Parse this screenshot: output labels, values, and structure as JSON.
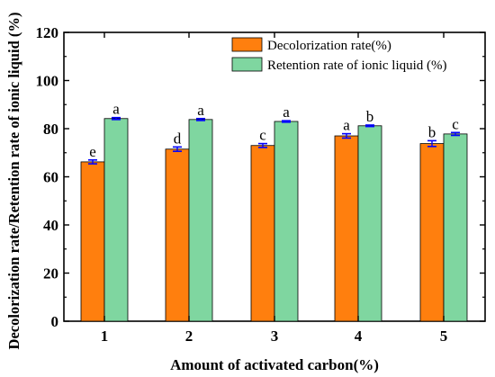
{
  "chart_data": {
    "type": "bar",
    "xlabel": "Amount of activated carbon(%)",
    "ylabel": "Decolorization rate/Retention rate of ionic liquid (%)",
    "ylim": [
      0,
      120
    ],
    "yticks": [
      0,
      20,
      40,
      60,
      80,
      100,
      120
    ],
    "categories": [
      "1",
      "2",
      "3",
      "4",
      "5"
    ],
    "series": [
      {
        "name": "Decolorization rate(%)",
        "color": "#FF7F0E",
        "values": [
          66.2,
          71.5,
          73.0,
          77.0,
          73.8
        ],
        "errors": [
          0.8,
          0.9,
          0.8,
          0.9,
          1.2
        ],
        "letters": [
          "e",
          "d",
          "c",
          "a",
          "b"
        ]
      },
      {
        "name": "Retention rate of ionic liquid (%)",
        "color": "#7FD6A0",
        "values": [
          84.2,
          83.8,
          83.0,
          81.2,
          77.8
        ],
        "errors": [
          0.4,
          0.4,
          0.3,
          0.3,
          0.6
        ],
        "letters": [
          "a",
          "a",
          "a",
          "b",
          "c"
        ]
      }
    ],
    "legend_position": "top-right",
    "error_bar_color": "#0000FF"
  }
}
